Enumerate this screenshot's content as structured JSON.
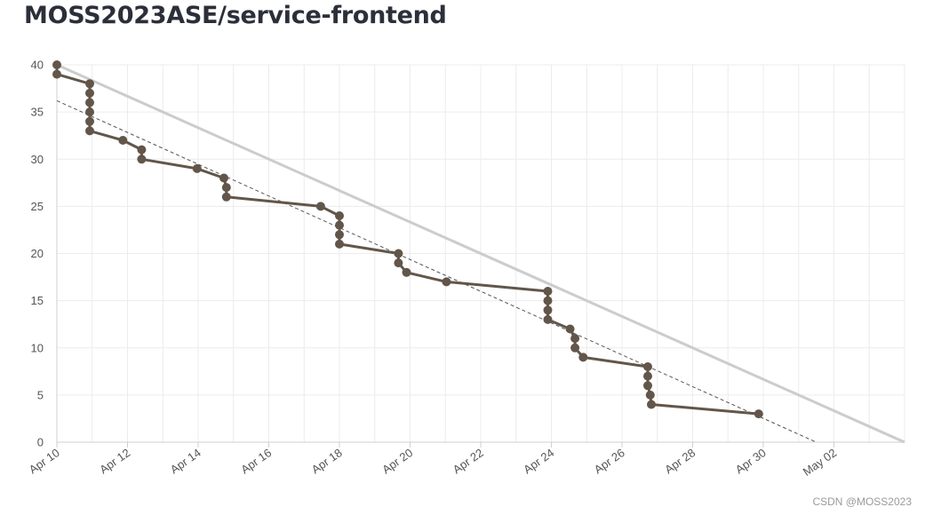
{
  "page": {
    "title": "MOSS2023ASE/service-frontend",
    "watermark": "CSDN @MOSS2023"
  },
  "chart_data": {
    "type": "line",
    "title": "MOSS2023ASE/service-frontend",
    "xlabel": "",
    "ylabel": "",
    "x_unit": "days from Apr 10",
    "ylim": [
      0,
      40
    ],
    "xlim": [
      0,
      24
    ],
    "y_ticks": [
      0,
      5,
      10,
      15,
      20,
      25,
      30,
      35,
      40
    ],
    "x_ticks": [
      {
        "x": 0,
        "label": "Apr 10"
      },
      {
        "x": 2,
        "label": "Apr 12"
      },
      {
        "x": 4,
        "label": "Apr 14"
      },
      {
        "x": 6,
        "label": "Apr 16"
      },
      {
        "x": 8,
        "label": "Apr 18"
      },
      {
        "x": 10,
        "label": "Apr 20"
      },
      {
        "x": 12,
        "label": "Apr 22"
      },
      {
        "x": 14,
        "label": "Apr 24"
      },
      {
        "x": 16,
        "label": "Apr 26"
      },
      {
        "x": 18,
        "label": "Apr 28"
      },
      {
        "x": 20,
        "label": "Apr 30"
      },
      {
        "x": 22,
        "label": "May 02"
      }
    ],
    "grid": true,
    "colors": {
      "actual": "#62564a",
      "ideal": "#cccccc",
      "trend": "#555555",
      "grid": "#ececec",
      "axis": "#cfcfcf"
    },
    "series": [
      {
        "style": "ideal",
        "points": [
          [
            0,
            40
          ],
          [
            24,
            0
          ]
        ]
      },
      {
        "style": "trend",
        "points": [
          [
            0,
            36.2
          ],
          [
            21.5,
            0
          ]
        ]
      },
      {
        "style": "actual",
        "points": [
          [
            0,
            40
          ],
          [
            0,
            39
          ],
          [
            0.93,
            38
          ],
          [
            0.93,
            37
          ],
          [
            0.93,
            36
          ],
          [
            0.93,
            35
          ],
          [
            0.93,
            34
          ],
          [
            0.93,
            33
          ],
          [
            1.87,
            32
          ],
          [
            2.4,
            31
          ],
          [
            2.4,
            30
          ],
          [
            3.97,
            29
          ],
          [
            4.73,
            28
          ],
          [
            4.8,
            27
          ],
          [
            4.8,
            26
          ],
          [
            7.47,
            25
          ],
          [
            8.0,
            24
          ],
          [
            8.0,
            23
          ],
          [
            8.0,
            22
          ],
          [
            8.0,
            21
          ],
          [
            9.67,
            20
          ],
          [
            9.67,
            19
          ],
          [
            9.9,
            18
          ],
          [
            11.03,
            17
          ],
          [
            13.9,
            16
          ],
          [
            13.9,
            15
          ],
          [
            13.9,
            14
          ],
          [
            13.9,
            13
          ],
          [
            14.53,
            12
          ],
          [
            14.67,
            11
          ],
          [
            14.67,
            10
          ],
          [
            14.9,
            9
          ],
          [
            16.73,
            8
          ],
          [
            16.73,
            7
          ],
          [
            16.73,
            6
          ],
          [
            16.8,
            5
          ],
          [
            16.83,
            4
          ],
          [
            19.87,
            3
          ]
        ]
      }
    ]
  }
}
